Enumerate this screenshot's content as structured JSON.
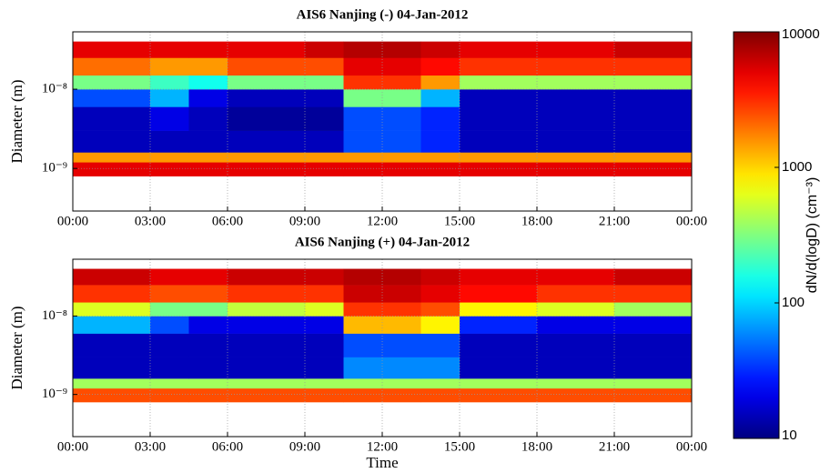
{
  "chart_data": [
    {
      "type": "heatmap",
      "title": "AIS6 Nanjing (-) 04-Jan-2012",
      "ylabel": "Diameter (m)",
      "ylog": true,
      "xlim": [
        0,
        24
      ],
      "xticks": [
        {
          "value": 0,
          "label": "00:00"
        },
        {
          "value": 3,
          "label": "03:00"
        },
        {
          "value": 6,
          "label": "06:00"
        },
        {
          "value": 9,
          "label": "09:00"
        },
        {
          "value": 12,
          "label": "12:00"
        },
        {
          "value": 15,
          "label": "15:00"
        },
        {
          "value": 18,
          "label": "18:00"
        },
        {
          "value": 21,
          "label": "21:00"
        },
        {
          "value": 24,
          "label": "00:00"
        }
      ],
      "ylim": [
        2.9e-10,
        5.3e-08
      ],
      "yticks": [
        {
          "value": 1e-09,
          "label": "10⁻⁹"
        },
        {
          "value": 1e-08,
          "label": "10⁻⁸"
        }
      ],
      "grid": true,
      "x_edges": [
        0,
        3,
        4.5,
        6,
        9,
        10.5,
        13.5,
        15,
        18,
        21,
        24
      ],
      "y_edges": [
        8e-10,
        1.2e-09,
        1.6e-09,
        3e-09,
        6e-09,
        1e-08,
        1.5e-08,
        2.5e-08,
        4e-08
      ],
      "values": [
        [
          5000,
          5000,
          5000,
          5000,
          5000,
          5000,
          5000,
          5000,
          5000,
          5000
        ],
        [
          1500,
          1500,
          1500,
          1500,
          1500,
          1500,
          1500,
          1500,
          1500,
          1500
        ],
        [
          15,
          15,
          15,
          15,
          15,
          40,
          30,
          15,
          15,
          15
        ],
        [
          15,
          20,
          15,
          12,
          12,
          40,
          30,
          15,
          15,
          15
        ],
        [
          40,
          80,
          20,
          15,
          15,
          300,
          80,
          15,
          15,
          15
        ],
        [
          300,
          200,
          150,
          300,
          300,
          3000,
          1500,
          400,
          400,
          400
        ],
        [
          2000,
          1500,
          1500,
          2500,
          2500,
          5000,
          4000,
          3000,
          3000,
          3000
        ],
        [
          5000,
          5000,
          5000,
          5000,
          6000,
          7000,
          6000,
          5000,
          5000,
          6000
        ]
      ],
      "colorbar": {
        "clim": [
          10,
          10000
        ],
        "ticks": [
          10,
          100,
          1000,
          10000
        ],
        "label": "dN/d(logD) (cm⁻³)",
        "colormap": "jet",
        "log": true
      }
    },
    {
      "type": "heatmap",
      "title": "AIS6 Nanjing (+) 04-Jan-2012",
      "ylabel": "Diameter (m)",
      "xlabel": "Time",
      "ylog": true,
      "xlim": [
        0,
        24
      ],
      "xticks": [
        {
          "value": 0,
          "label": "00:00"
        },
        {
          "value": 3,
          "label": "03:00"
        },
        {
          "value": 6,
          "label": "06:00"
        },
        {
          "value": 9,
          "label": "09:00"
        },
        {
          "value": 12,
          "label": "12:00"
        },
        {
          "value": 15,
          "label": "15:00"
        },
        {
          "value": 18,
          "label": "18:00"
        },
        {
          "value": 21,
          "label": "21:00"
        },
        {
          "value": 24,
          "label": "00:00"
        }
      ],
      "ylim": [
        2.9e-10,
        5.3e-08
      ],
      "yticks": [
        {
          "value": 1e-09,
          "label": "10⁻⁹"
        },
        {
          "value": 1e-08,
          "label": "10⁻⁸"
        }
      ],
      "grid": true,
      "x_edges": [
        0,
        3,
        4.5,
        6,
        9,
        10.5,
        13.5,
        15,
        18,
        21,
        24
      ],
      "y_edges": [
        8e-10,
        1.2e-09,
        1.6e-09,
        3e-09,
        6e-09,
        1e-08,
        1.5e-08,
        2.5e-08,
        4e-08
      ],
      "values": [
        [
          2500,
          2500,
          2500,
          2500,
          2500,
          2500,
          2500,
          2500,
          2500,
          2500
        ],
        [
          400,
          400,
          400,
          400,
          400,
          400,
          400,
          400,
          400,
          400
        ],
        [
          15,
          15,
          15,
          15,
          15,
          60,
          60,
          15,
          15,
          15
        ],
        [
          15,
          15,
          15,
          15,
          15,
          40,
          40,
          15,
          15,
          15
        ],
        [
          80,
          40,
          20,
          20,
          20,
          1200,
          800,
          30,
          20,
          20
        ],
        [
          600,
          300,
          300,
          500,
          600,
          3000,
          2500,
          800,
          600,
          400
        ],
        [
          3000,
          2500,
          2500,
          3000,
          3000,
          6000,
          5000,
          4000,
          3000,
          3000
        ],
        [
          6000,
          5000,
          5000,
          6000,
          6000,
          7000,
          6000,
          5000,
          5000,
          6000
        ]
      ]
    }
  ]
}
